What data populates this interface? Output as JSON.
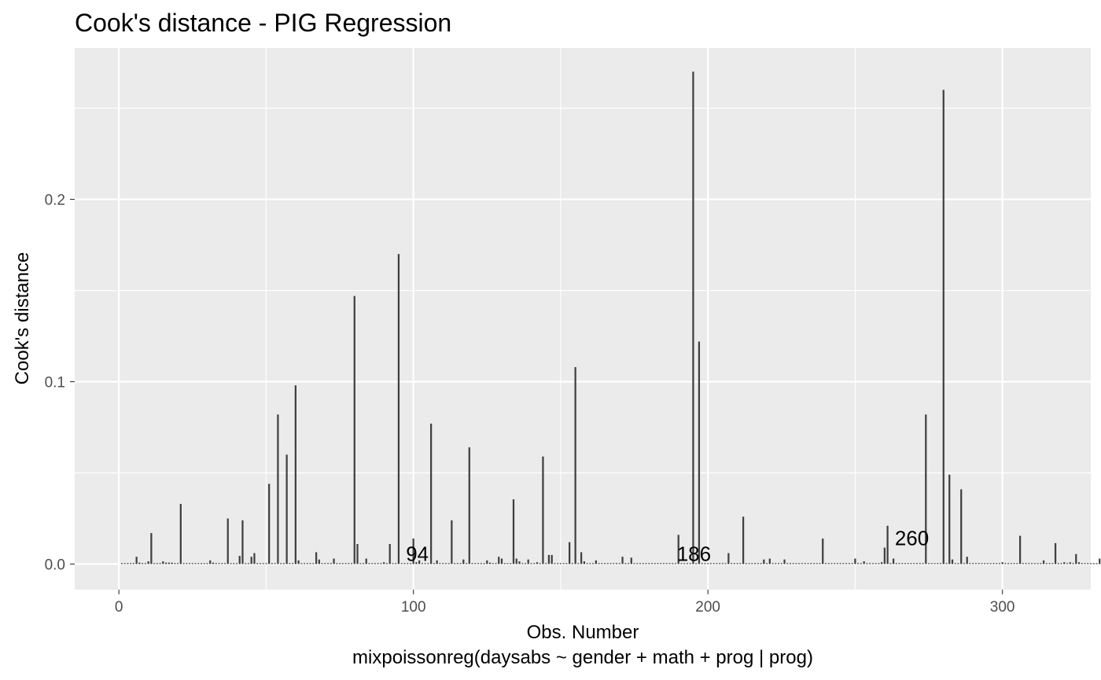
{
  "chart_data": {
    "type": "bar",
    "title": "Cook's distance - PIG Regression",
    "xlabel": "Obs. Number",
    "xlabel2": "mixpoissonreg(daysabs ~ gender + math + prog | prog)",
    "ylabel": "Cook's distance",
    "xlim": [
      -15,
      330
    ],
    "ylim": [
      -0.014,
      0.283
    ],
    "xticks": [
      0,
      100,
      200,
      300
    ],
    "xtick_labels": [
      "0",
      "100",
      "200",
      "300"
    ],
    "yticks": [
      0.0,
      0.1,
      0.2
    ],
    "ytick_labels": [
      "0.0",
      "0.1",
      "0.2"
    ],
    "grid": true,
    "bar_color": "#404040",
    "panel_bg": "#ebebeb",
    "n_obs": 314,
    "values": [
      0.0005,
      0.0005,
      0.0005,
      0.0005,
      0.0005,
      0.004,
      0.0008,
      0.0005,
      0.0005,
      0.0015,
      0.017,
      0.0005,
      0.0005,
      0.0005,
      0.0015,
      0.0008,
      0.0008,
      0.0008,
      0.0005,
      0.0005,
      0.033,
      0.0005,
      0.0005,
      0.0005,
      0.0005,
      0.0005,
      0.0005,
      0.0005,
      0.0005,
      0.0005,
      0.002,
      0.0008,
      0.0005,
      0.0005,
      0.0005,
      0.0005,
      0.025,
      0.0005,
      0.0005,
      0.0005,
      0.0045,
      0.024,
      0.0005,
      0.0005,
      0.004,
      0.006,
      0.0005,
      0.0005,
      0.0005,
      0.0005,
      0.044,
      0.0005,
      0.0005,
      0.082,
      0.0005,
      0.0005,
      0.06,
      0.0005,
      0.0005,
      0.098,
      0.002,
      0.0005,
      0.0005,
      0.0005,
      0.0005,
      0.0005,
      0.0065,
      0.0025,
      0.0005,
      0.0005,
      0.0005,
      0.0005,
      0.003,
      0.0005,
      0.0005,
      0.0005,
      0.0005,
      0.0005,
      0.0005,
      0.147,
      0.011,
      0.0005,
      0.0005,
      0.003,
      0.0005,
      0.0005,
      0.0005,
      0.0005,
      0.0005,
      0.001,
      0.0005,
      0.011,
      0.0005,
      0.0005,
      0.17,
      0.0005,
      0.0005,
      0.0005,
      0.0005,
      0.014,
      0.001,
      0.002,
      0.0005,
      0.0005,
      0.0005,
      0.077,
      0.0005,
      0.002,
      0.0005,
      0.0005,
      0.0005,
      0.0005,
      0.024,
      0.0005,
      0.0005,
      0.0005,
      0.0025,
      0.0005,
      0.064,
      0.0005,
      0.0005,
      0.0005,
      0.0005,
      0.0005,
      0.002,
      0.0008,
      0.0005,
      0.0005,
      0.004,
      0.003,
      0.0005,
      0.0005,
      0.0005,
      0.0355,
      0.003,
      0.0015,
      0.0005,
      0.0005,
      0.0025,
      0.0005,
      0.0005,
      0.001,
      0.0005,
      0.059,
      0.0005,
      0.005,
      0.005,
      0.0005,
      0.0005,
      0.0005,
      0.0005,
      0.0005,
      0.012,
      0.0005,
      0.108,
      0.0005,
      0.0065,
      0.0015,
      0.0005,
      0.0005,
      0.0005,
      0.002,
      0.0005,
      0.0005,
      0.0005,
      0.0005,
      0.0005,
      0.0005,
      0.0005,
      0.0005,
      0.004,
      0.0005,
      0.0005,
      0.0035,
      0.0005,
      0.0005,
      0.0005,
      0.0005,
      0.0005,
      0.0005,
      0.0005,
      0.0005,
      0.0005,
      0.0005,
      0.0005,
      0.0005,
      0.0005,
      0.0005,
      0.0005,
      0.016,
      0.0005,
      0.0005,
      0.0005,
      0.0005,
      0.27,
      0.0005,
      0.122,
      0.0005,
      0.0005,
      0.0005,
      0.0005,
      0.0005,
      0.0005,
      0.0005,
      0.0005,
      0.0005,
      0.006,
      0.0005,
      0.0005,
      0.0005,
      0.0005,
      0.026,
      0.0005,
      0.0005,
      0.0005,
      0.0005,
      0.0005,
      0.0005,
      0.0025,
      0.0005,
      0.003,
      0.0005,
      0.0005,
      0.0005,
      0.0005,
      0.0025,
      0.0005,
      0.0005,
      0.0005,
      0.0005,
      0.0005,
      0.0005,
      0.0005,
      0.0005,
      0.0005,
      0.0005,
      0.0005,
      0.0005,
      0.014,
      0.0005,
      0.0005,
      0.0005,
      0.0005,
      0.0005,
      0.0005,
      0.0005,
      0.0005,
      0.0005,
      0.0005,
      0.003,
      0.0005,
      0.0005,
      0.0015,
      0.0005,
      0.0005,
      0.0005,
      0.0005,
      0.0005,
      0.001,
      0.009,
      0.021,
      0.0005,
      0.003,
      0.0005,
      0.0005,
      0.0005,
      0.0005,
      0.0005,
      0.0005,
      0.0005,
      0.0005,
      0.0005,
      0.0005,
      0.082,
      0.0005,
      0.0005,
      0.0005,
      0.0005,
      0.0005,
      0.26,
      0.0005,
      0.049,
      0.0025,
      0.0005,
      0.0005,
      0.041,
      0.0005,
      0.004,
      0.0005,
      0.0005,
      0.0005,
      0.0005,
      0.0005,
      0.0005,
      0.0005,
      0.0005,
      0.0005,
      0.0005,
      0.0005,
      0.001,
      0.0005,
      0.0005,
      0.0005,
      0.0005,
      0.0005,
      0.0155,
      0.0005,
      0.0005,
      0.0005,
      0.0005,
      0.0005,
      0.0005,
      0.0005,
      0.002,
      0.0005,
      0.0005,
      0.0005,
      0.0115,
      0.0005,
      0.0005,
      0.001,
      0.0005,
      0.001,
      0.0005,
      0.0055,
      0.001,
      0.0005,
      0.0005,
      0.0005,
      0.0005,
      0.0005,
      0.0005,
      0.003,
      0.0005,
      0.0005,
      0.0005,
      0.0005,
      0.0005
    ],
    "annotations": [
      {
        "obs": 94,
        "label": "94"
      },
      {
        "obs": 186,
        "label": "186"
      },
      {
        "obs": 260,
        "label": "260"
      }
    ]
  }
}
